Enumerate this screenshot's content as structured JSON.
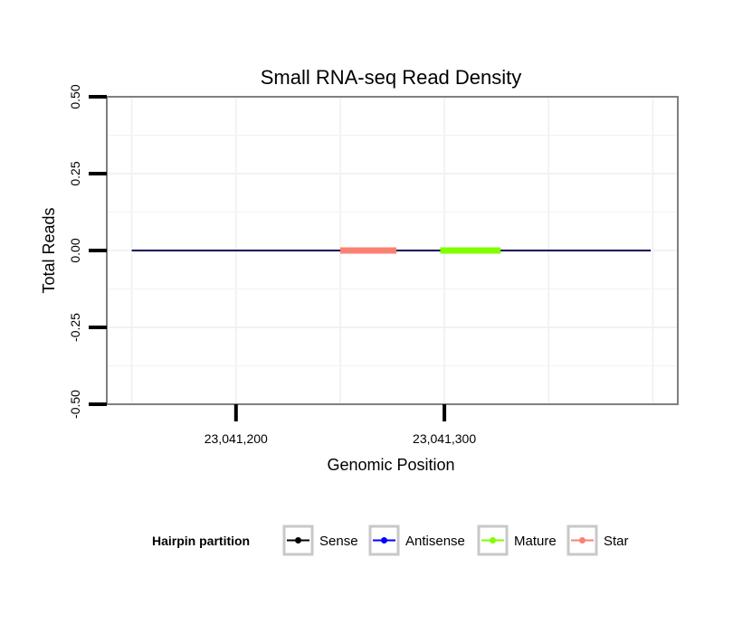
{
  "chart_data": {
    "type": "line",
    "title": "Small RNA-seq Read Density",
    "xlabel": "Genomic Position",
    "ylabel": "Total Reads",
    "xlim": [
      23041138,
      23041412
    ],
    "ylim": [
      -0.5,
      0.5
    ],
    "x_ticks": [
      {
        "value": 23041200,
        "label": "23,041,200"
      },
      {
        "value": 23041300,
        "label": "23,041,300"
      }
    ],
    "y_ticks": [
      {
        "value": 0.5,
        "label": "0.50"
      },
      {
        "value": 0.25,
        "label": "0.25"
      },
      {
        "value": 0.0,
        "label": "0.00"
      },
      {
        "value": -0.25,
        "label": "-0.25"
      },
      {
        "value": -0.5,
        "label": "-0.50"
      }
    ],
    "grid": true,
    "legend": {
      "title": "Hairpin partition",
      "position": "bottom",
      "entries": [
        {
          "label": "Sense",
          "color": "#000000"
        },
        {
          "label": "Antisense",
          "color": "#0000ff"
        },
        {
          "label": "Mature",
          "color": "#7fff00"
        },
        {
          "label": "Star",
          "color": "#fa8072"
        }
      ]
    },
    "series": [
      {
        "name": "Sense",
        "color": "#000000",
        "x": [
          23041150,
          23041399
        ],
        "y": [
          0,
          0
        ]
      },
      {
        "name": "Antisense",
        "color": "#0000ff",
        "x": [
          23041150,
          23041399
        ],
        "y": [
          0,
          0
        ]
      },
      {
        "name": "Star",
        "color": "#fa8072",
        "x": [
          23041250,
          23041277
        ],
        "y": [
          0,
          0
        ]
      },
      {
        "name": "Mature",
        "color": "#7fff00",
        "x": [
          23041298,
          23041327
        ],
        "y": [
          0,
          0
        ]
      }
    ]
  }
}
